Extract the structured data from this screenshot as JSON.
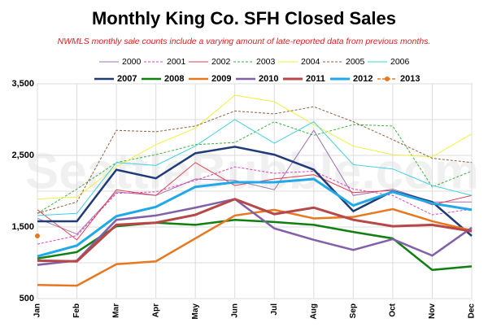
{
  "chart_data": {
    "type": "line",
    "title": "Monthly King Co. SFH Closed Sales",
    "subtitle": "NWMLS monthly sale counts include a varying amount of late-reported  data from previous months.",
    "watermark": "SeattleBubble.com",
    "categories": [
      "Jan",
      "Feb",
      "Mar",
      "Apr",
      "May",
      "Jun",
      "Jul",
      "Aug",
      "Sep",
      "Oct",
      "Nov",
      "Dec"
    ],
    "ylim": [
      500,
      3500
    ],
    "yticks": [
      500,
      {
        "value": 1500,
        "label": "1,500"
      },
      {
        "value": 2500,
        "label": "2,500"
      },
      {
        "value": 3500,
        "label": "3,500"
      }
    ],
    "yminor": [
      1000,
      2000,
      3000
    ],
    "grid": true,
    "series": [
      {
        "name": "2000",
        "color": "#a070b0",
        "width": 1,
        "dash": "",
        "values": [
          1620,
          1400,
          1990,
          1940,
          2170,
          2150,
          2020,
          2850,
          1940,
          2030,
          1850,
          1850
        ]
      },
      {
        "name": "2001",
        "color": "#e040c0",
        "width": 1,
        "dash": "3,2",
        "values": [
          1260,
          1380,
          1970,
          1990,
          2150,
          2340,
          2250,
          2280,
          2030,
          1940,
          1670,
          1750
        ]
      },
      {
        "name": "2002",
        "color": "#e04050",
        "width": 1,
        "dash": "",
        "values": [
          1740,
          1320,
          2020,
          1940,
          2400,
          2080,
          2170,
          2230,
          1980,
          2010,
          1810,
          1940
        ]
      },
      {
        "name": "2003",
        "color": "#40b040",
        "width": 1,
        "dash": "3,2",
        "values": [
          1690,
          2030,
          2400,
          2510,
          2650,
          2680,
          2970,
          2780,
          2930,
          2910,
          2060,
          2280
        ]
      },
      {
        "name": "2004",
        "color": "#f0f040",
        "width": 1,
        "dash": "",
        "values": [
          1890,
          1920,
          2340,
          2650,
          2880,
          3340,
          3250,
          2930,
          2630,
          2510,
          2480,
          2800
        ]
      },
      {
        "name": "2005",
        "color": "#906040",
        "width": 1,
        "dash": "3,2",
        "values": [
          1690,
          1850,
          2850,
          2830,
          2910,
          3120,
          3080,
          3180,
          2970,
          2720,
          2460,
          2400
        ]
      },
      {
        "name": "2006",
        "color": "#40d0e0",
        "width": 1,
        "dash": "",
        "values": [
          1660,
          1690,
          2400,
          2360,
          2630,
          3000,
          2670,
          2970,
          2370,
          2310,
          2080,
          1940
        ]
      },
      {
        "name": "2007",
        "color": "#203c78",
        "width": 2.5,
        "dash": "",
        "values": [
          1580,
          1580,
          2300,
          2180,
          2530,
          2620,
          2510,
          2300,
          1720,
          2000,
          1850,
          1375
        ]
      },
      {
        "name": "2008",
        "color": "#108010",
        "width": 2.5,
        "dash": "",
        "values": [
          1060,
          1150,
          1510,
          1560,
          1530,
          1600,
          1570,
          1530,
          1430,
          1340,
          900,
          950
        ]
      },
      {
        "name": "2009",
        "color": "#e87820",
        "width": 2.5,
        "dash": "",
        "values": [
          690,
          680,
          980,
          1020,
          1340,
          1660,
          1740,
          1620,
          1640,
          1750,
          1580,
          1450
        ]
      },
      {
        "name": "2010",
        "color": "#8060a8",
        "width": 2.5,
        "dash": "",
        "values": [
          970,
          1030,
          1600,
          1660,
          1770,
          1890,
          1480,
          1320,
          1180,
          1330,
          1100,
          1490
        ]
      },
      {
        "name": "2011",
        "color": "#b84848",
        "width": 3,
        "dash": "",
        "values": [
          1030,
          1020,
          1530,
          1560,
          1670,
          1890,
          1680,
          1770,
          1600,
          1510,
          1530,
          1440
        ]
      },
      {
        "name": "2012",
        "color": "#20a8e8",
        "width": 3,
        "dash": "",
        "values": [
          1090,
          1240,
          1650,
          1780,
          2060,
          2125,
          2125,
          2170,
          1800,
          1990,
          1830,
          1740
        ]
      },
      {
        "name": "2013",
        "color": "#e87820",
        "width": 1.5,
        "dash": "4,2",
        "marker": true,
        "values": [
          1375,
          null,
          null,
          null,
          null,
          null,
          null,
          null,
          null,
          null,
          null,
          null
        ]
      }
    ]
  }
}
